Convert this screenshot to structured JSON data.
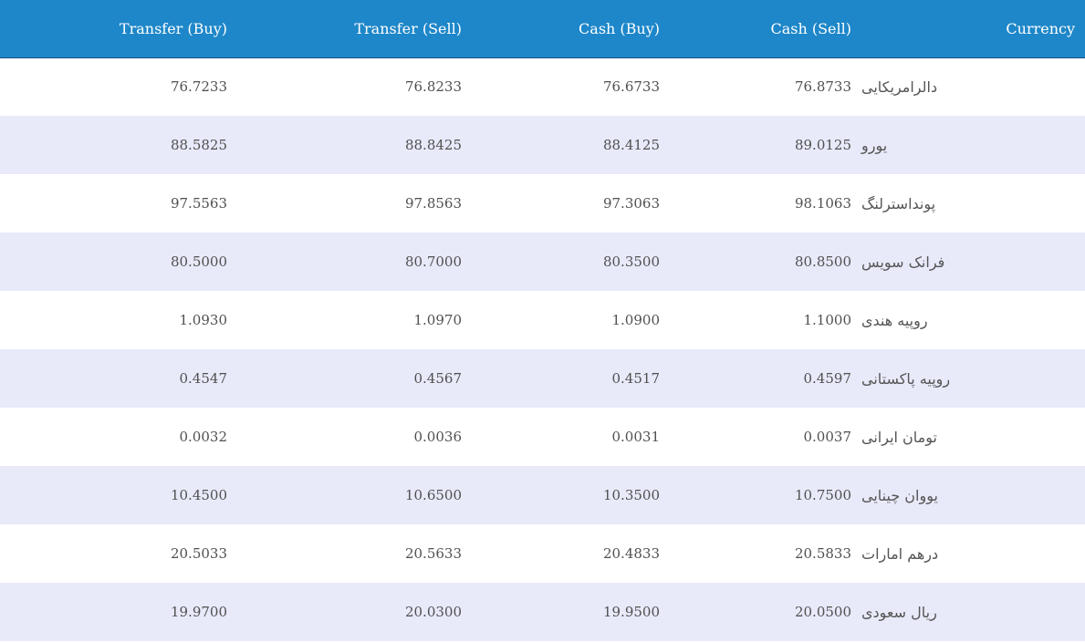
{
  "table": {
    "headers": [
      "Transfer (Buy)",
      "Transfer (Sell)",
      "Cash (Buy)",
      "Cash (Sell)",
      "Currency"
    ],
    "rows": [
      {
        "transfer_buy": "76.7233",
        "transfer_sell": "76.8233",
        "cash_buy": "76.6733",
        "cash_sell": "76.8733",
        "currency": "دالرامریکایی"
      },
      {
        "transfer_buy": "88.5825",
        "transfer_sell": "88.8425",
        "cash_buy": "88.4125",
        "cash_sell": "89.0125",
        "currency": "یورو"
      },
      {
        "transfer_buy": "97.5563",
        "transfer_sell": "97.8563",
        "cash_buy": "97.3063",
        "cash_sell": "98.1063",
        "currency": "پونداسترلنگ"
      },
      {
        "transfer_buy": "80.5000",
        "transfer_sell": "80.7000",
        "cash_buy": "80.3500",
        "cash_sell": "80.8500",
        "currency": "فرانک سویس"
      },
      {
        "transfer_buy": "1.0930",
        "transfer_sell": "1.0970",
        "cash_buy": "1.0900",
        "cash_sell": "1.1000",
        "currency": "روپیه هندی"
      },
      {
        "transfer_buy": "0.4547",
        "transfer_sell": "0.4567",
        "cash_buy": "0.4517",
        "cash_sell": "0.4597",
        "currency": "روپیه پاکستانی"
      },
      {
        "transfer_buy": "0.0032",
        "transfer_sell": "0.0036",
        "cash_buy": "0.0031",
        "cash_sell": "0.0037",
        "currency": "تومان ایرانی"
      },
      {
        "transfer_buy": "10.4500",
        "transfer_sell": "10.6500",
        "cash_buy": "10.3500",
        "cash_sell": "10.7500",
        "currency": "یووان چینایی"
      },
      {
        "transfer_buy": "20.5033",
        "transfer_sell": "20.5633",
        "cash_buy": "20.4833",
        "cash_sell": "20.5833",
        "currency": "درهم امارات"
      },
      {
        "transfer_buy": "19.9700",
        "transfer_sell": "20.0300",
        "cash_buy": "19.9500",
        "cash_sell": "20.0500",
        "currency": "ریال سعودی"
      }
    ]
  },
  "colors": {
    "header_bg": "#1e87c9",
    "header_text": "#ffffff",
    "row_alt_bg": "#e8eafa",
    "cell_text": "#505050"
  }
}
